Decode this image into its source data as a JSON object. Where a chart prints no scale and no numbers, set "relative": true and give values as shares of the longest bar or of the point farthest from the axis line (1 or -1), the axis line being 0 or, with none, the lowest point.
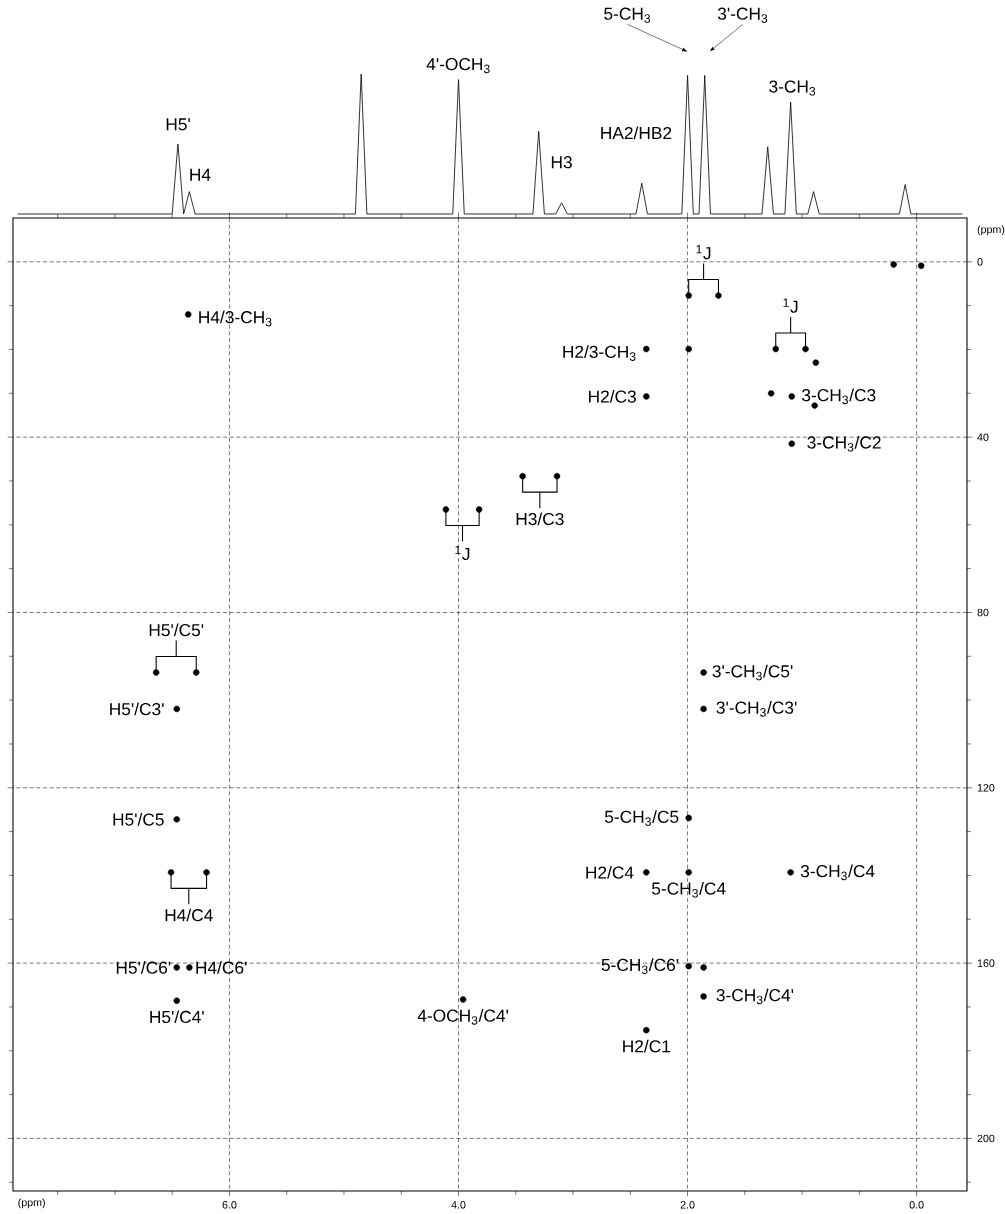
{
  "chart_data": [
    {
      "type": "line",
      "relative": true,
      "color": "#000000",
      "categories": [
        null,
        null,
        null,
        null,
        null,
        null,
        null,
        null,
        null,
        null,
        null,
        null,
        null,
        null,
        null,
        null,
        null,
        null,
        null,
        null,
        null,
        null,
        null,
        null,
        null,
        null,
        null,
        null,
        null,
        null,
        null,
        null,
        null,
        null,
        null,
        null,
        null,
        null,
        null,
        null,
        null,
        null,
        null,
        null,
        null,
        null,
        null,
        null,
        null,
        null,
        null,
        null,
        null,
        null,
        null,
        null,
        null,
        null,
        null,
        null,
        null,
        null,
        null,
        null,
        null,
        null,
        null,
        null,
        null,
        null,
        null,
        null,
        null,
        null,
        null,
        null,
        null,
        null,
        null,
        null,
        null,
        null,
        null,
        null,
        null,
        null,
        null,
        null,
        null,
        null,
        null,
        null,
        null,
        null,
        null,
        null,
        null,
        null,
        null,
        null,
        null,
        null,
        null,
        null,
        null,
        null,
        null,
        null,
        null,
        null,
        null,
        null,
        null,
        null,
        null,
        null,
        null,
        null,
        null,
        null,
        null,
        null,
        null,
        null,
        null,
        null,
        null,
        null,
        null,
        null,
        null,
        null,
        null,
        null,
        null,
        null,
        null,
        null,
        null,
        null,
        null,
        null,
        null,
        null,
        null,
        null,
        null,
        null,
        null,
        null,
        null,
        null,
        null,
        null,
        null,
        null,
        null,
        null,
        null,
        null,
        null,
        null,
        null,
        null,
        null,
        null
      ],
      "values": [
        0,
        0,
        0,
        0,
        0,
        0,
        0,
        0,
        0,
        0,
        0,
        0,
        0,
        0,
        0,
        0,
        0,
        0,
        0,
        0,
        0,
        0,
        0,
        0,
        0,
        0,
        0,
        0,
        0.5,
        0,
        0.16,
        0,
        0,
        0,
        0,
        0,
        0,
        0,
        0,
        0,
        0,
        0,
        0,
        0,
        0,
        0,
        0,
        0,
        0,
        0,
        0,
        0,
        0,
        0,
        0,
        0,
        0,
        0,
        0,
        0,
        1.0,
        0,
        0,
        0,
        0,
        0,
        0,
        0,
        0,
        0,
        0,
        0,
        0,
        0,
        0,
        0,
        0,
        0.96,
        0,
        0,
        0,
        0,
        0,
        0,
        0,
        0,
        0,
        0,
        0,
        0,
        0,
        0.59,
        0,
        0,
        0,
        0.08,
        0,
        0,
        0,
        0,
        0,
        0,
        0,
        0,
        0,
        0,
        0,
        0,
        0,
        0.22,
        0,
        0,
        0,
        0,
        0,
        0,
        0,
        0.99,
        0,
        0,
        0.99,
        0,
        0,
        0,
        0,
        0,
        0,
        0,
        0,
        0,
        0,
        0.48,
        0,
        0,
        0,
        0.8,
        0,
        0,
        0,
        0.16,
        0,
        0,
        0,
        0,
        0,
        0,
        0,
        0,
        0,
        0,
        0,
        0,
        0,
        0,
        0,
        0.21,
        0,
        0,
        0,
        0,
        0,
        0,
        0,
        0,
        0,
        0
      ],
      "annotations": [
        "H5'",
        "H4",
        "4'-OCH$_{3}$",
        "H3",
        "HA2/HB2",
        "5-CH$_{3}$",
        "3'-CH$_{3}$",
        "3-CH$_{3}$"
      ]
    },
    {
      "type": "scatter",
      "color": "#000000",
      "marker": "circle",
      "grid": true,
      "xlabel": "(ppm)",
      "ylabel": "(ppm)",
      "xlim": [
        7.89,
        -0.44
      ],
      "ylim": [
        212,
        -10
      ],
      "xticks": [
        {
          "value": 7.5,
          "label": null
        },
        {
          "value": 7.0,
          "label": null
        },
        {
          "value": 6.5,
          "label": null
        },
        {
          "value": 6.0,
          "label": "6.0"
        },
        {
          "value": 5.5,
          "label": null
        },
        {
          "value": 5.0,
          "label": null
        },
        {
          "value": 4.5,
          "label": null
        },
        {
          "value": 4.0,
          "label": "4.0"
        },
        {
          "value": 3.5,
          "label": null
        },
        {
          "value": 3.0,
          "label": null
        },
        {
          "value": 2.5,
          "label": null
        },
        {
          "value": 2.0,
          "label": "2.0"
        },
        {
          "value": 1.5,
          "label": null
        },
        {
          "value": 1.0,
          "label": null
        },
        {
          "value": 0.5,
          "label": null
        },
        {
          "value": 0.0,
          "label": "0.0"
        }
      ],
      "yticks": [
        0,
        {
          "value": 10,
          "label": null
        },
        {
          "value": 20,
          "label": null
        },
        {
          "value": 30,
          "label": null
        },
        40,
        {
          "value": 50,
          "label": null
        },
        {
          "value": 60,
          "label": null
        },
        {
          "value": 70,
          "label": null
        },
        80,
        {
          "value": 90,
          "label": null
        },
        {
          "value": 100,
          "label": null
        },
        {
          "value": 110,
          "label": null
        },
        120,
        {
          "value": 130,
          "label": null
        },
        {
          "value": 140,
          "label": null
        },
        {
          "value": 150,
          "label": null
        },
        160,
        {
          "value": 170,
          "label": null
        },
        {
          "value": 180,
          "label": null
        },
        {
          "value": 190,
          "label": null
        },
        200,
        {
          "value": 210,
          "label": null
        }
      ],
      "x": [
        1.99,
        1.73,
        0.2,
        -0.04,
        6.36,
        2.36,
        1.99,
        1.23,
        0.97,
        0.88,
        2.36,
        1.27,
        1.09,
        0.89,
        1.09,
        3.44,
        3.14,
        4.11,
        3.82,
        6.64,
        6.29,
        1.86,
        6.46,
        1.86,
        6.46,
        1.99,
        6.51,
        6.2,
        2.36,
        1.99,
        1.1,
        6.46,
        6.35,
        1.99,
        1.86,
        6.46,
        3.96,
        1.86,
        2.36
      ],
      "values": [
        7.7,
        7.7,
        0.6,
        0.9,
        12,
        19.9,
        19.9,
        19.9,
        19.9,
        23,
        30.7,
        30,
        30.7,
        32.8,
        41.5,
        48.9,
        48.9,
        56.5,
        56.5,
        93.7,
        93.7,
        93.7,
        102,
        102,
        127.2,
        126.9,
        139.3,
        139.3,
        139.3,
        139.3,
        139.3,
        161,
        161,
        160.7,
        161,
        168.6,
        168.3,
        167.6,
        175.3
      ],
      "annotations": [
        {
          "text": "H4/3-CH$_{3}$",
          "x": 6.36,
          "y": 12
        },
        {
          "text": "H2/3-CH$_{3}$",
          "x": 2.36,
          "y": 19.9
        },
        {
          "text": "H2/C3",
          "x": 2.36,
          "y": 30.7
        },
        {
          "text": "3-CH$_{3}$/C3",
          "x": 1.09,
          "y": 30.7
        },
        {
          "text": "3-CH$_{3}$/C2",
          "x": 1.09,
          "y": 41.5
        },
        {
          "text": "H3/C3",
          "x": 3.44,
          "y": 48.9
        },
        {
          "text": "$^{1}$J",
          "x": 4.11,
          "y": 56.5
        },
        {
          "text": "$^{1}$J",
          "x": 1.99,
          "y": 7.7
        },
        {
          "text": "$^{1}$J",
          "x": 1.23,
          "y": 19.9
        },
        {
          "text": "H5'/C5'",
          "x": 6.64,
          "y": 93.7
        },
        {
          "text": "H5'/C3'",
          "x": 6.46,
          "y": 102
        },
        {
          "text": "3'-CH$_{3}$/C5'",
          "x": 1.86,
          "y": 93.7
        },
        {
          "text": "3'-CH$_{3}$/C3'",
          "x": 1.86,
          "y": 102
        },
        {
          "text": "H5'/C5",
          "x": 6.46,
          "y": 127.2
        },
        {
          "text": "5-CH$_{3}$/C5",
          "x": 1.99,
          "y": 126.9
        },
        {
          "text": "H2/C4",
          "x": 2.36,
          "y": 139.3
        },
        {
          "text": "5-CH$_{3}$/C4",
          "x": 1.99,
          "y": 139.3
        },
        {
          "text": "3-CH$_{3}$/C4",
          "x": 1.1,
          "y": 139.3
        },
        {
          "text": "H4/C4",
          "x": 6.51,
          "y": 139.3
        },
        {
          "text": "H5'/C6'",
          "x": 6.46,
          "y": 161
        },
        {
          "text": "H4/C6'",
          "x": 6.35,
          "y": 161
        },
        {
          "text": "5-CH$_{3}$/C6'",
          "x": 1.99,
          "y": 160.7
        },
        {
          "text": "3-CH$_{3}$/C4'",
          "x": 1.86,
          "y": 167.6
        },
        {
          "text": "H5'/C4'",
          "x": 6.46,
          "y": 168.6
        },
        {
          "text": "4-OCH$_{3}$/C4'",
          "x": 3.96,
          "y": 168.3
        },
        {
          "text": "H2/C1",
          "x": 2.36,
          "y": 175.3
        }
      ]
    }
  ]
}
